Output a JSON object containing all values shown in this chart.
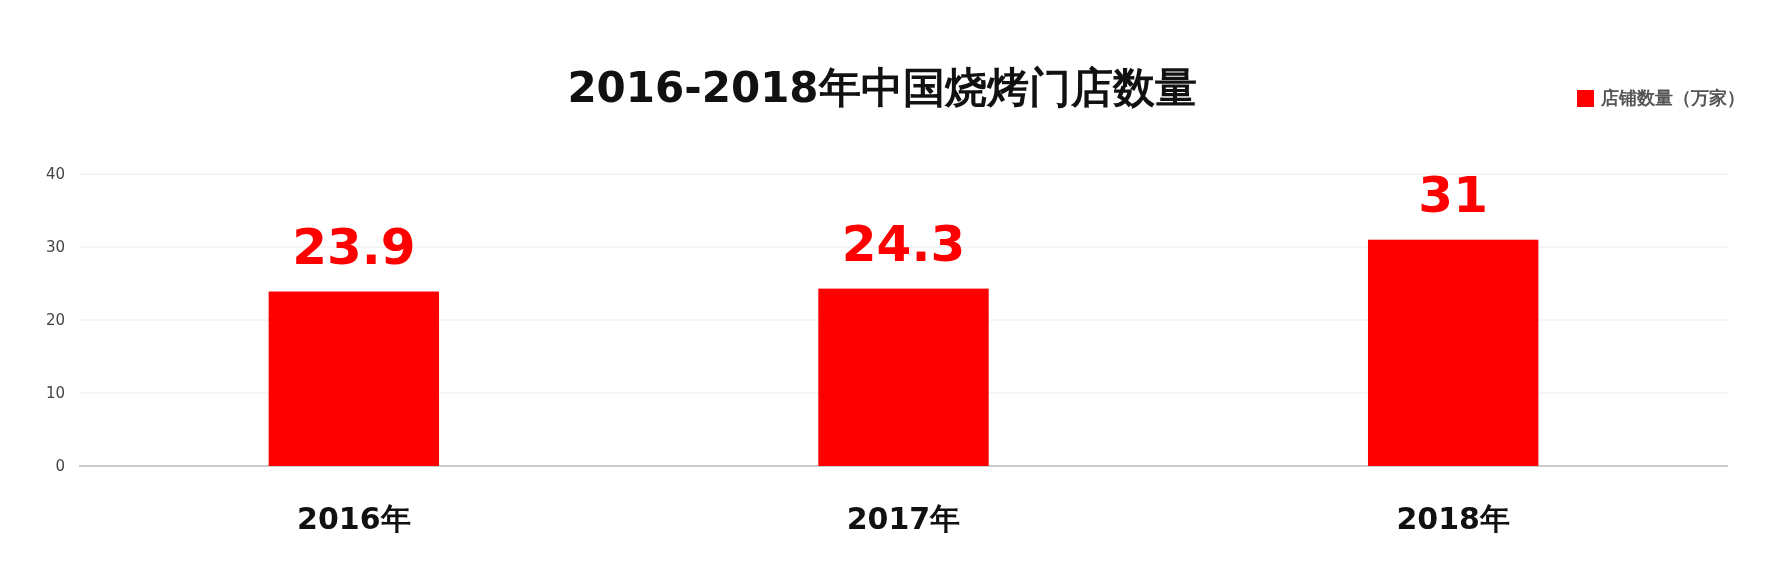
{
  "chart_data": {
    "type": "bar",
    "title": "2016-2018年中国烧烤门店数量",
    "categories": [
      "2016年",
      "2017年",
      "2018年"
    ],
    "series": [
      {
        "name": "店铺数量（万家）",
        "color": "#ff0000",
        "values": [
          23.9,
          24.3,
          31
        ]
      }
    ],
    "ylim": [
      0,
      40
    ],
    "yticks": [
      0,
      10,
      20,
      30,
      40
    ],
    "grid": "y",
    "legend": "top right",
    "data_labels": true
  }
}
